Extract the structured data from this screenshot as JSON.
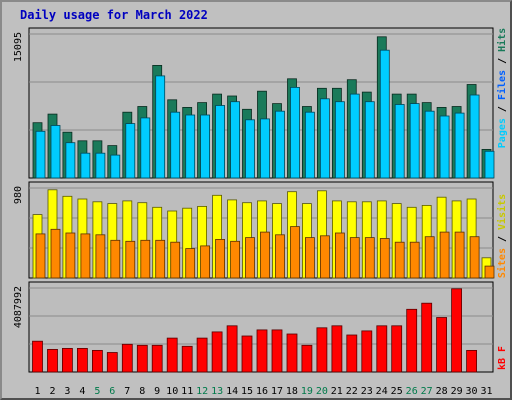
{
  "title": "Daily usage for March 2022",
  "colors": {
    "background": "#c0c0c0",
    "panel": "#bdbdbd",
    "hits": "#1a7a5a",
    "files": "#00ccff",
    "pages": "#00a0c0",
    "visits": "#ffff00",
    "sites": "#ff8800",
    "kbytes": "#ff0000",
    "weekday_label": "#000000",
    "weekend_label": "#007a4a"
  },
  "side_labels": {
    "top": [
      "Pages",
      " / ",
      "Files",
      " / ",
      "Hits"
    ],
    "middle": [
      "Sites",
      " / ",
      "Visits"
    ],
    "bottom": "kB F"
  },
  "chart_data": [
    {
      "type": "bar",
      "panel": "hits-files",
      "ymax_label": "15095",
      "ylim": [
        0,
        15095
      ],
      "categories": [
        "1",
        "2",
        "3",
        "4",
        "5",
        "6",
        "7",
        "8",
        "9",
        "10",
        "11",
        "12",
        "13",
        "14",
        "15",
        "16",
        "17",
        "18",
        "19",
        "20",
        "21",
        "22",
        "23",
        "24",
        "25",
        "26",
        "27",
        "28",
        "29",
        "30",
        "31"
      ],
      "series": [
        {
          "name": "Hits",
          "values": [
            5800,
            6700,
            4800,
            3900,
            3900,
            3400,
            6900,
            7500,
            11800,
            8200,
            7400,
            7900,
            8800,
            8600,
            7200,
            9100,
            7800,
            10400,
            7500,
            9400,
            9400,
            10300,
            9000,
            14800,
            8800,
            8800,
            7900,
            7400,
            7500,
            9800,
            3000
          ]
        },
        {
          "name": "Files",
          "values": [
            4900,
            5500,
            3700,
            2600,
            2600,
            2400,
            5700,
            6300,
            10700,
            6900,
            6600,
            6600,
            7600,
            8000,
            6100,
            6200,
            7000,
            9500,
            6900,
            8300,
            8000,
            8800,
            8000,
            13400,
            7700,
            7800,
            7000,
            6500,
            6800,
            8700,
            2800
          ]
        }
      ]
    },
    {
      "type": "bar",
      "panel": "visits-sites",
      "ymax_label": "980",
      "ylim": [
        0,
        980
      ],
      "categories": [
        "1",
        "2",
        "3",
        "4",
        "5",
        "6",
        "7",
        "8",
        "9",
        "10",
        "11",
        "12",
        "13",
        "14",
        "15",
        "16",
        "17",
        "18",
        "19",
        "20",
        "21",
        "22",
        "23",
        "24",
        "25",
        "26",
        "27",
        "28",
        "29",
        "30",
        "31"
      ],
      "series": [
        {
          "name": "Visits",
          "values": [
            690,
            960,
            890,
            860,
            830,
            810,
            840,
            820,
            770,
            730,
            760,
            780,
            900,
            850,
            820,
            840,
            810,
            940,
            810,
            950,
            840,
            830,
            830,
            840,
            810,
            770,
            790,
            880,
            840,
            860,
            220
          ]
        },
        {
          "name": "Sites",
          "values": [
            480,
            530,
            490,
            480,
            470,
            410,
            400,
            410,
            410,
            390,
            320,
            350,
            420,
            400,
            440,
            500,
            470,
            560,
            440,
            460,
            490,
            440,
            440,
            430,
            390,
            390,
            450,
            500,
            500,
            450,
            130
          ]
        }
      ]
    },
    {
      "type": "bar",
      "panel": "kbytes",
      "ymax_label": "4087992",
      "ylim": [
        0,
        4087992
      ],
      "categories": [
        "1",
        "2",
        "3",
        "4",
        "5",
        "6",
        "7",
        "8",
        "9",
        "10",
        "11",
        "12",
        "13",
        "14",
        "15",
        "16",
        "17",
        "18",
        "19",
        "20",
        "21",
        "22",
        "23",
        "24",
        "25",
        "26",
        "27",
        "28",
        "29",
        "30",
        "31"
      ],
      "series": [
        {
          "name": "kB F",
          "values": [
            1500000,
            1100000,
            1150000,
            1150000,
            1050000,
            950000,
            1350000,
            1300000,
            1300000,
            1650000,
            1250000,
            1650000,
            1950000,
            2250000,
            1750000,
            2050000,
            2050000,
            1850000,
            1300000,
            2150000,
            2250000,
            1800000,
            2000000,
            2250000,
            2250000,
            3050000,
            3350000,
            2650000,
            4050000,
            1050000,
            0
          ]
        }
      ]
    }
  ]
}
